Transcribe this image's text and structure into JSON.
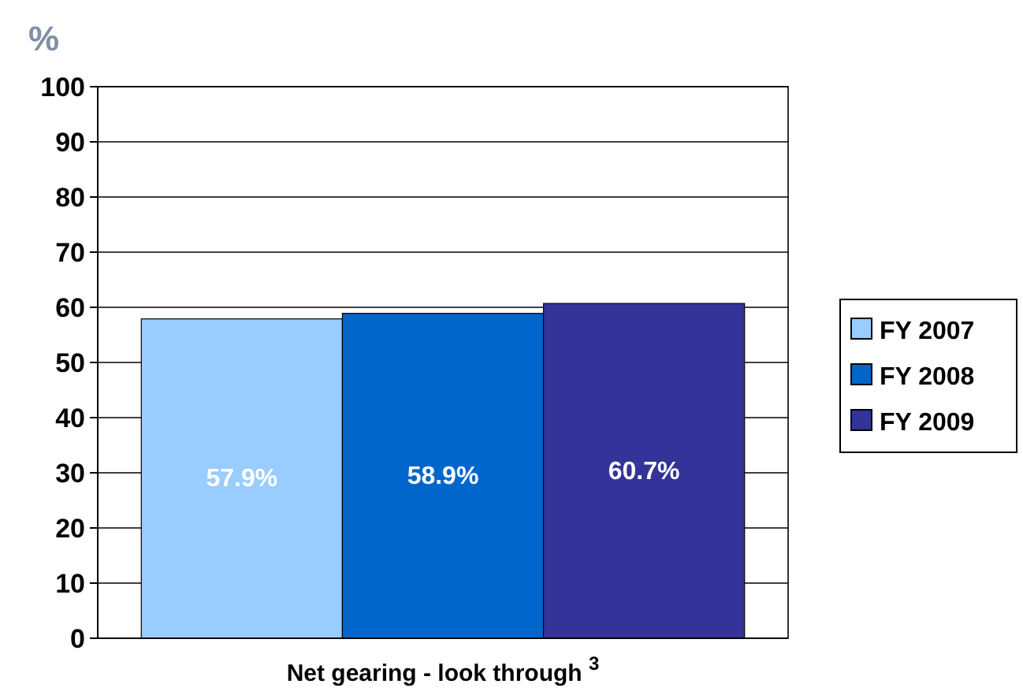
{
  "chart_data": {
    "type": "bar",
    "ylabel": "%",
    "categories": [
      "Net gearing - look through $^{3}$"
    ],
    "series": [
      {
        "name": "FY 2007",
        "color": "#99ccff",
        "values": [
          57.9
        ],
        "value_labels": [
          "57.9%"
        ]
      },
      {
        "name": "FY 2008",
        "color": "#0066cc",
        "values": [
          58.9
        ],
        "value_labels": [
          "58.9%"
        ]
      },
      {
        "name": "FY 2009",
        "color": "#333399",
        "values": [
          60.7
        ],
        "value_labels": [
          "60.7%"
        ]
      }
    ],
    "ylim": [
      0,
      100
    ],
    "yticks": [
      0,
      10,
      20,
      30,
      40,
      50,
      60,
      70,
      80,
      90,
      100
    ],
    "grid": "y",
    "legend": "right"
  }
}
